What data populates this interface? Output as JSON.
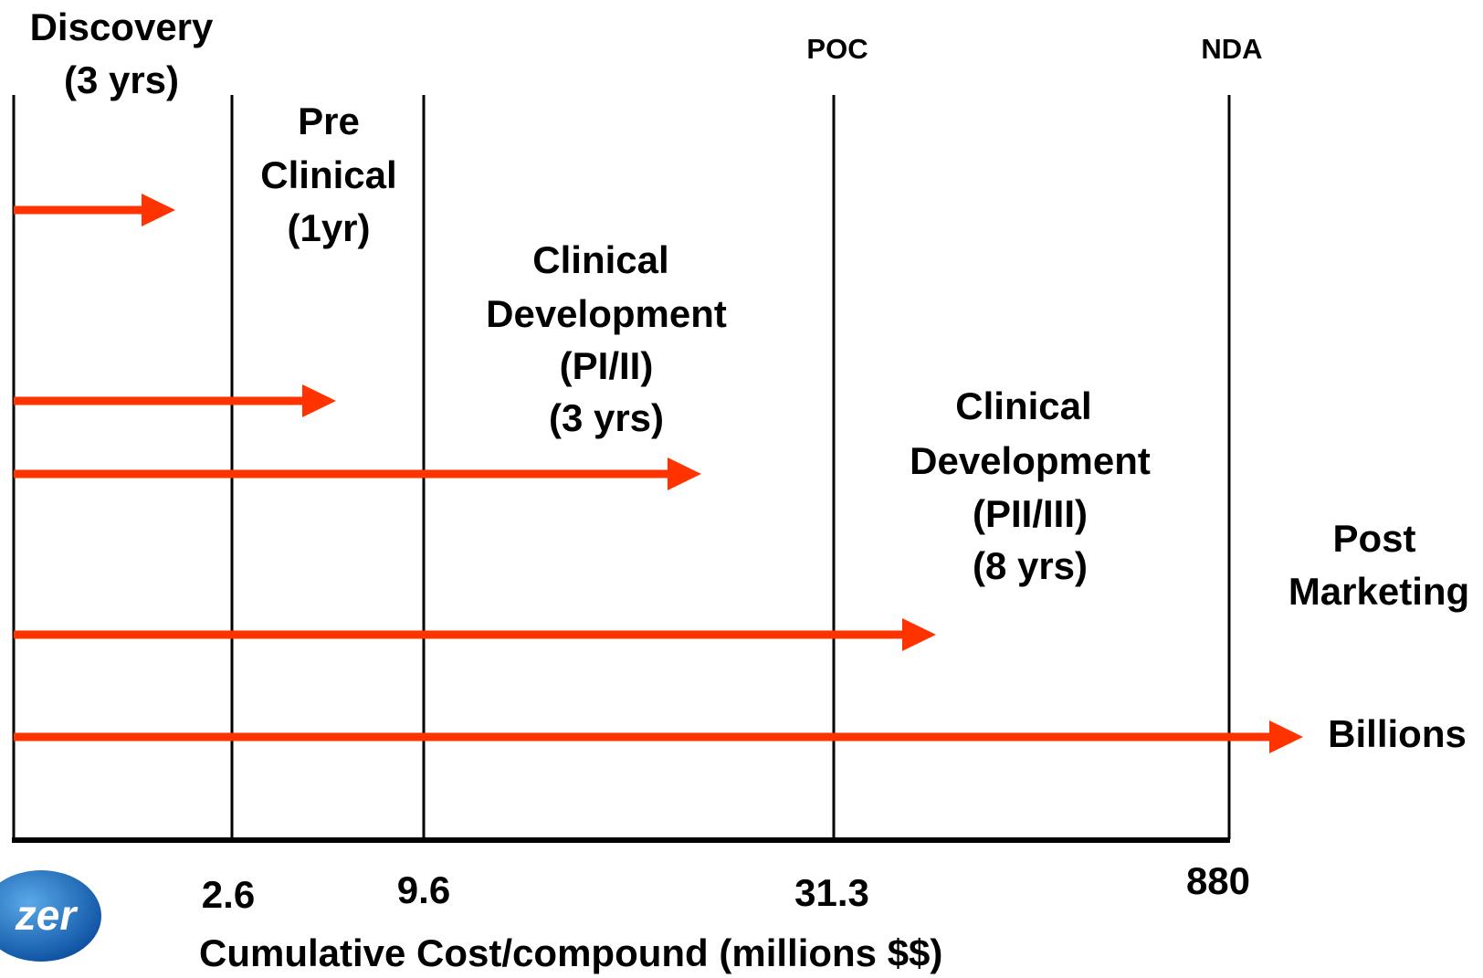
{
  "discovery": {
    "lines": [
      "Discovery",
      "(3 yrs)"
    ]
  },
  "preclinical": {
    "lines": [
      "Pre",
      "Clinical",
      "(1yr)"
    ]
  },
  "clinical_1": {
    "lines": [
      "Clinical",
      "Development",
      "(PI/II)",
      "(3 yrs)"
    ]
  },
  "clinical_2": {
    "lines": [
      "Clinical",
      "Development",
      "(PII/III)",
      "(8 yrs)"
    ]
  },
  "post_marketing": {
    "lines": [
      "Post",
      "Marketing"
    ]
  },
  "milestones": {
    "poc": "POC",
    "nda": "NDA"
  },
  "billions": "Billions",
  "cost_labels": [
    "2.6",
    "9.6",
    "31.3",
    "880"
  ],
  "axis_title": "Cumulative Cost/compound (millions $$)",
  "logo": "zer"
}
